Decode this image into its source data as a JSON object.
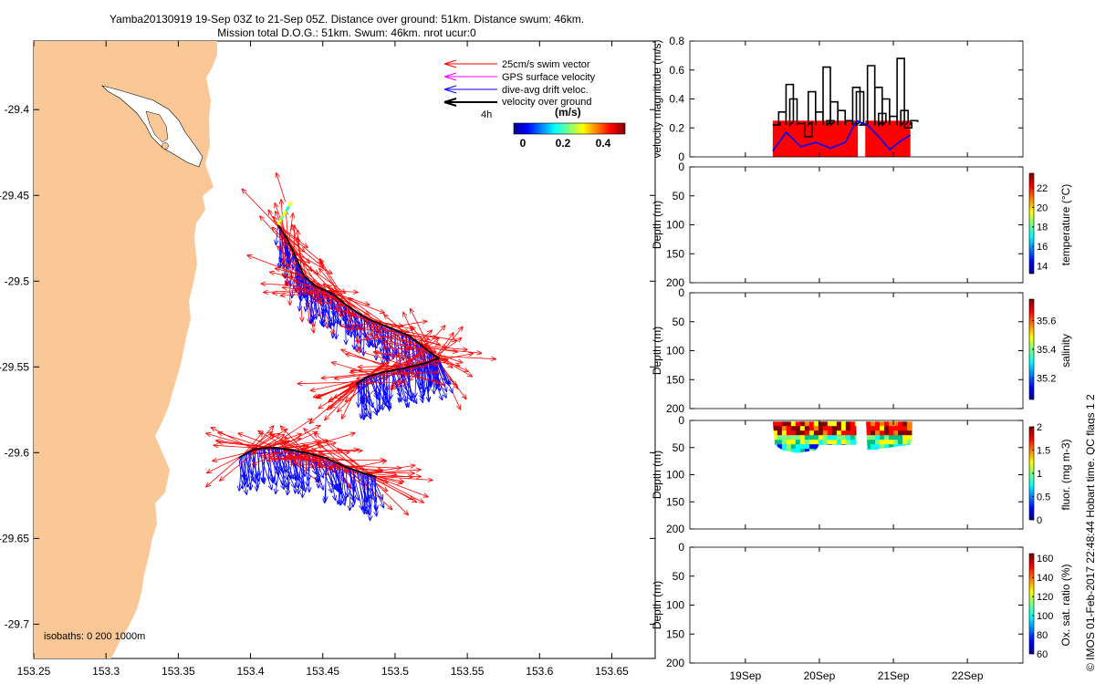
{
  "page": {
    "title_line1": "Yamba20130919 19-Sep 03Z to 21-Sep 05Z. Distance over ground: 51km. Distance swum: 46km.",
    "title_line2": "Mission total D.O.G.: 51km. Swum: 46km. nrot ucur:0",
    "credit": "© IMOS 01-Feb-2017 22:48:44 Hobart time. QC flags 1  2"
  },
  "colors": {
    "land": "#f9c896",
    "swim": "#ff0000",
    "gps": "#ff00ff",
    "drift": "#0000ff",
    "ground": "#000000"
  },
  "chart_data": [
    {
      "type": "map",
      "x_ticks": [
        "153.25",
        "153.3",
        "153.35",
        "153.4",
        "153.45",
        "153.5",
        "153.55",
        "153.6",
        "153.65"
      ],
      "y_ticks": [
        "-29.4",
        "-29.45",
        "-29.5",
        "-29.55",
        "-29.6",
        "-29.65",
        "-29.7"
      ],
      "xlim": [
        153.25,
        153.68
      ],
      "ylim": [
        -29.72,
        -29.36
      ],
      "legend": [
        {
          "label": "25cm/s swim vector",
          "color": "#ff0000"
        },
        {
          "label": "GPS surface velocity",
          "color": "#ff00ff"
        },
        {
          "label": "dive-avg drift veloc.",
          "color": "#0000ff"
        },
        {
          "label": "velocity over ground",
          "color": "#000000"
        }
      ],
      "scale_label": "4h",
      "colorbar": {
        "label": "(m/s)",
        "ticks": [
          "0",
          "0.2",
          "0.4"
        ]
      },
      "isobaths_label": "isobaths: 0    200   1000m",
      "track": [
        [
          153.419,
          -29.467
        ],
        [
          153.425,
          -29.475
        ],
        [
          153.432,
          -29.487
        ],
        [
          153.437,
          -29.497
        ],
        [
          153.445,
          -29.503
        ],
        [
          153.456,
          -29.507
        ],
        [
          153.468,
          -29.515
        ],
        [
          153.481,
          -29.522
        ],
        [
          153.496,
          -29.527
        ],
        [
          153.51,
          -29.532
        ],
        [
          153.522,
          -29.54
        ],
        [
          153.53,
          -29.545
        ],
        [
          153.52,
          -29.548
        ],
        [
          153.505,
          -29.551
        ],
        [
          153.492,
          -29.553
        ],
        [
          153.48,
          -29.556
        ],
        [
          153.473,
          -29.56
        ]
      ],
      "track2": [
        [
          153.392,
          -29.603
        ],
        [
          153.402,
          -29.598
        ],
        [
          153.414,
          -29.597
        ],
        [
          153.425,
          -29.598
        ],
        [
          153.438,
          -29.6
        ],
        [
          153.452,
          -29.603
        ],
        [
          153.465,
          -29.608
        ],
        [
          153.478,
          -29.612
        ],
        [
          153.487,
          -29.614
        ]
      ]
    },
    {
      "type": "line",
      "ylabel": "velocity magnitude (m/s)",
      "yticks": [
        "0",
        "0.2",
        "0.4",
        "0.6",
        "0.8"
      ],
      "ylim": [
        0,
        0.8
      ],
      "xlim": [
        0,
        4.5
      ],
      "x_ticks": [
        "19Sep",
        "20Sep",
        "21Sep",
        "22Sep"
      ],
      "x_tick_values": [
        0.75,
        1.75,
        2.75,
        3.75
      ],
      "series": [
        {
          "name": "swim",
          "color": "#ff0000",
          "segments": [
            [
              [
                1.12,
                0.25
              ],
              [
                2.27,
                0.25
              ]
            ],
            [
              [
                2.37,
                0.25
              ],
              [
                2.98,
                0.25
              ]
            ]
          ]
        },
        {
          "name": "drift",
          "color": "#0000ff",
          "x": [
            1.12,
            1.3,
            1.5,
            1.7,
            1.9,
            2.1,
            2.25,
            2.4,
            2.55,
            2.7,
            2.85,
            2.98
          ],
          "values": [
            0.04,
            0.17,
            0.07,
            0.1,
            0.06,
            0.1,
            0.25,
            0.22,
            0.14,
            0.05,
            0.11,
            0.15
          ]
        },
        {
          "name": "ground",
          "color": "#000000",
          "x": [
            1.12,
            1.2,
            1.3,
            1.35,
            1.45,
            1.55,
            1.6,
            1.7,
            1.8,
            1.85,
            1.9,
            2.0,
            2.1,
            2.2,
            2.25,
            2.3,
            2.4,
            2.5,
            2.55,
            2.6,
            2.7,
            2.8,
            2.85,
            2.9,
            2.98
          ],
          "values": [
            0.22,
            0.31,
            0.5,
            0.4,
            0.23,
            0.14,
            0.45,
            0.31,
            0.62,
            0.25,
            0.38,
            0.32,
            0.25,
            0.48,
            0.45,
            0.22,
            0.63,
            0.48,
            0.3,
            0.4,
            0.28,
            0.68,
            0.32,
            0.2,
            0.25
          ]
        }
      ]
    },
    {
      "type": "heatmap",
      "ylabel": "Depth (m)",
      "yticks": [
        "0",
        "50",
        "100",
        "150",
        "200"
      ],
      "ylim": [
        0,
        200
      ],
      "cbar_label": "temperature (°C)",
      "cbar_ticks": [
        "14",
        "16",
        "18",
        "20",
        "22"
      ],
      "cbar_range": [
        13.2,
        23.5
      ],
      "cells": []
    },
    {
      "type": "heatmap",
      "ylabel": "Depth (m)",
      "yticks": [
        "0",
        "50",
        "100",
        "150",
        "200"
      ],
      "ylim": [
        0,
        200
      ],
      "cbar_label": "salinity",
      "cbar_ticks": [
        "35.2",
        "35.4",
        "35.6"
      ],
      "cbar_range": [
        35.05,
        35.75
      ],
      "cells": []
    },
    {
      "type": "heatmap",
      "ylabel": "Depth (m)",
      "yticks": [
        "0",
        "50",
        "100",
        "150",
        "200"
      ],
      "ylim": [
        0,
        200
      ],
      "cbar_label": "fluor. (mg m-3)",
      "cbar_ticks": [
        "0",
        "0.5",
        "1",
        "1.5",
        "2"
      ],
      "cbar_range": [
        0,
        2
      ],
      "patches": [
        {
          "x": [
            1.12,
            1.15,
            1.25,
            1.45,
            1.7,
            1.75,
            2.25,
            2.25,
            1.8,
            1.5,
            1.2
          ],
          "depth": [
            2,
            45,
            55,
            60,
            55,
            45,
            45,
            2,
            2,
            2,
            2
          ]
        },
        {
          "x": [
            2.38,
            2.4,
            2.7,
            2.98,
            3.0,
            3.0,
            2.38
          ],
          "depth": [
            2,
            55,
            50,
            45,
            35,
            2,
            2
          ]
        }
      ]
    },
    {
      "type": "heatmap",
      "ylabel": "Depth (m)",
      "yticks": [
        "0",
        "50",
        "100",
        "150",
        "200"
      ],
      "ylim": [
        0,
        200
      ],
      "cbar_label": "Ox. sat. ratio (%)",
      "cbar_ticks": [
        "60",
        "80",
        "100",
        "120",
        "140",
        "160"
      ],
      "cbar_range": [
        60,
        165
      ],
      "cells": [],
      "x_ticks": [
        "19Sep",
        "20Sep",
        "21Sep",
        "22Sep"
      ]
    }
  ]
}
